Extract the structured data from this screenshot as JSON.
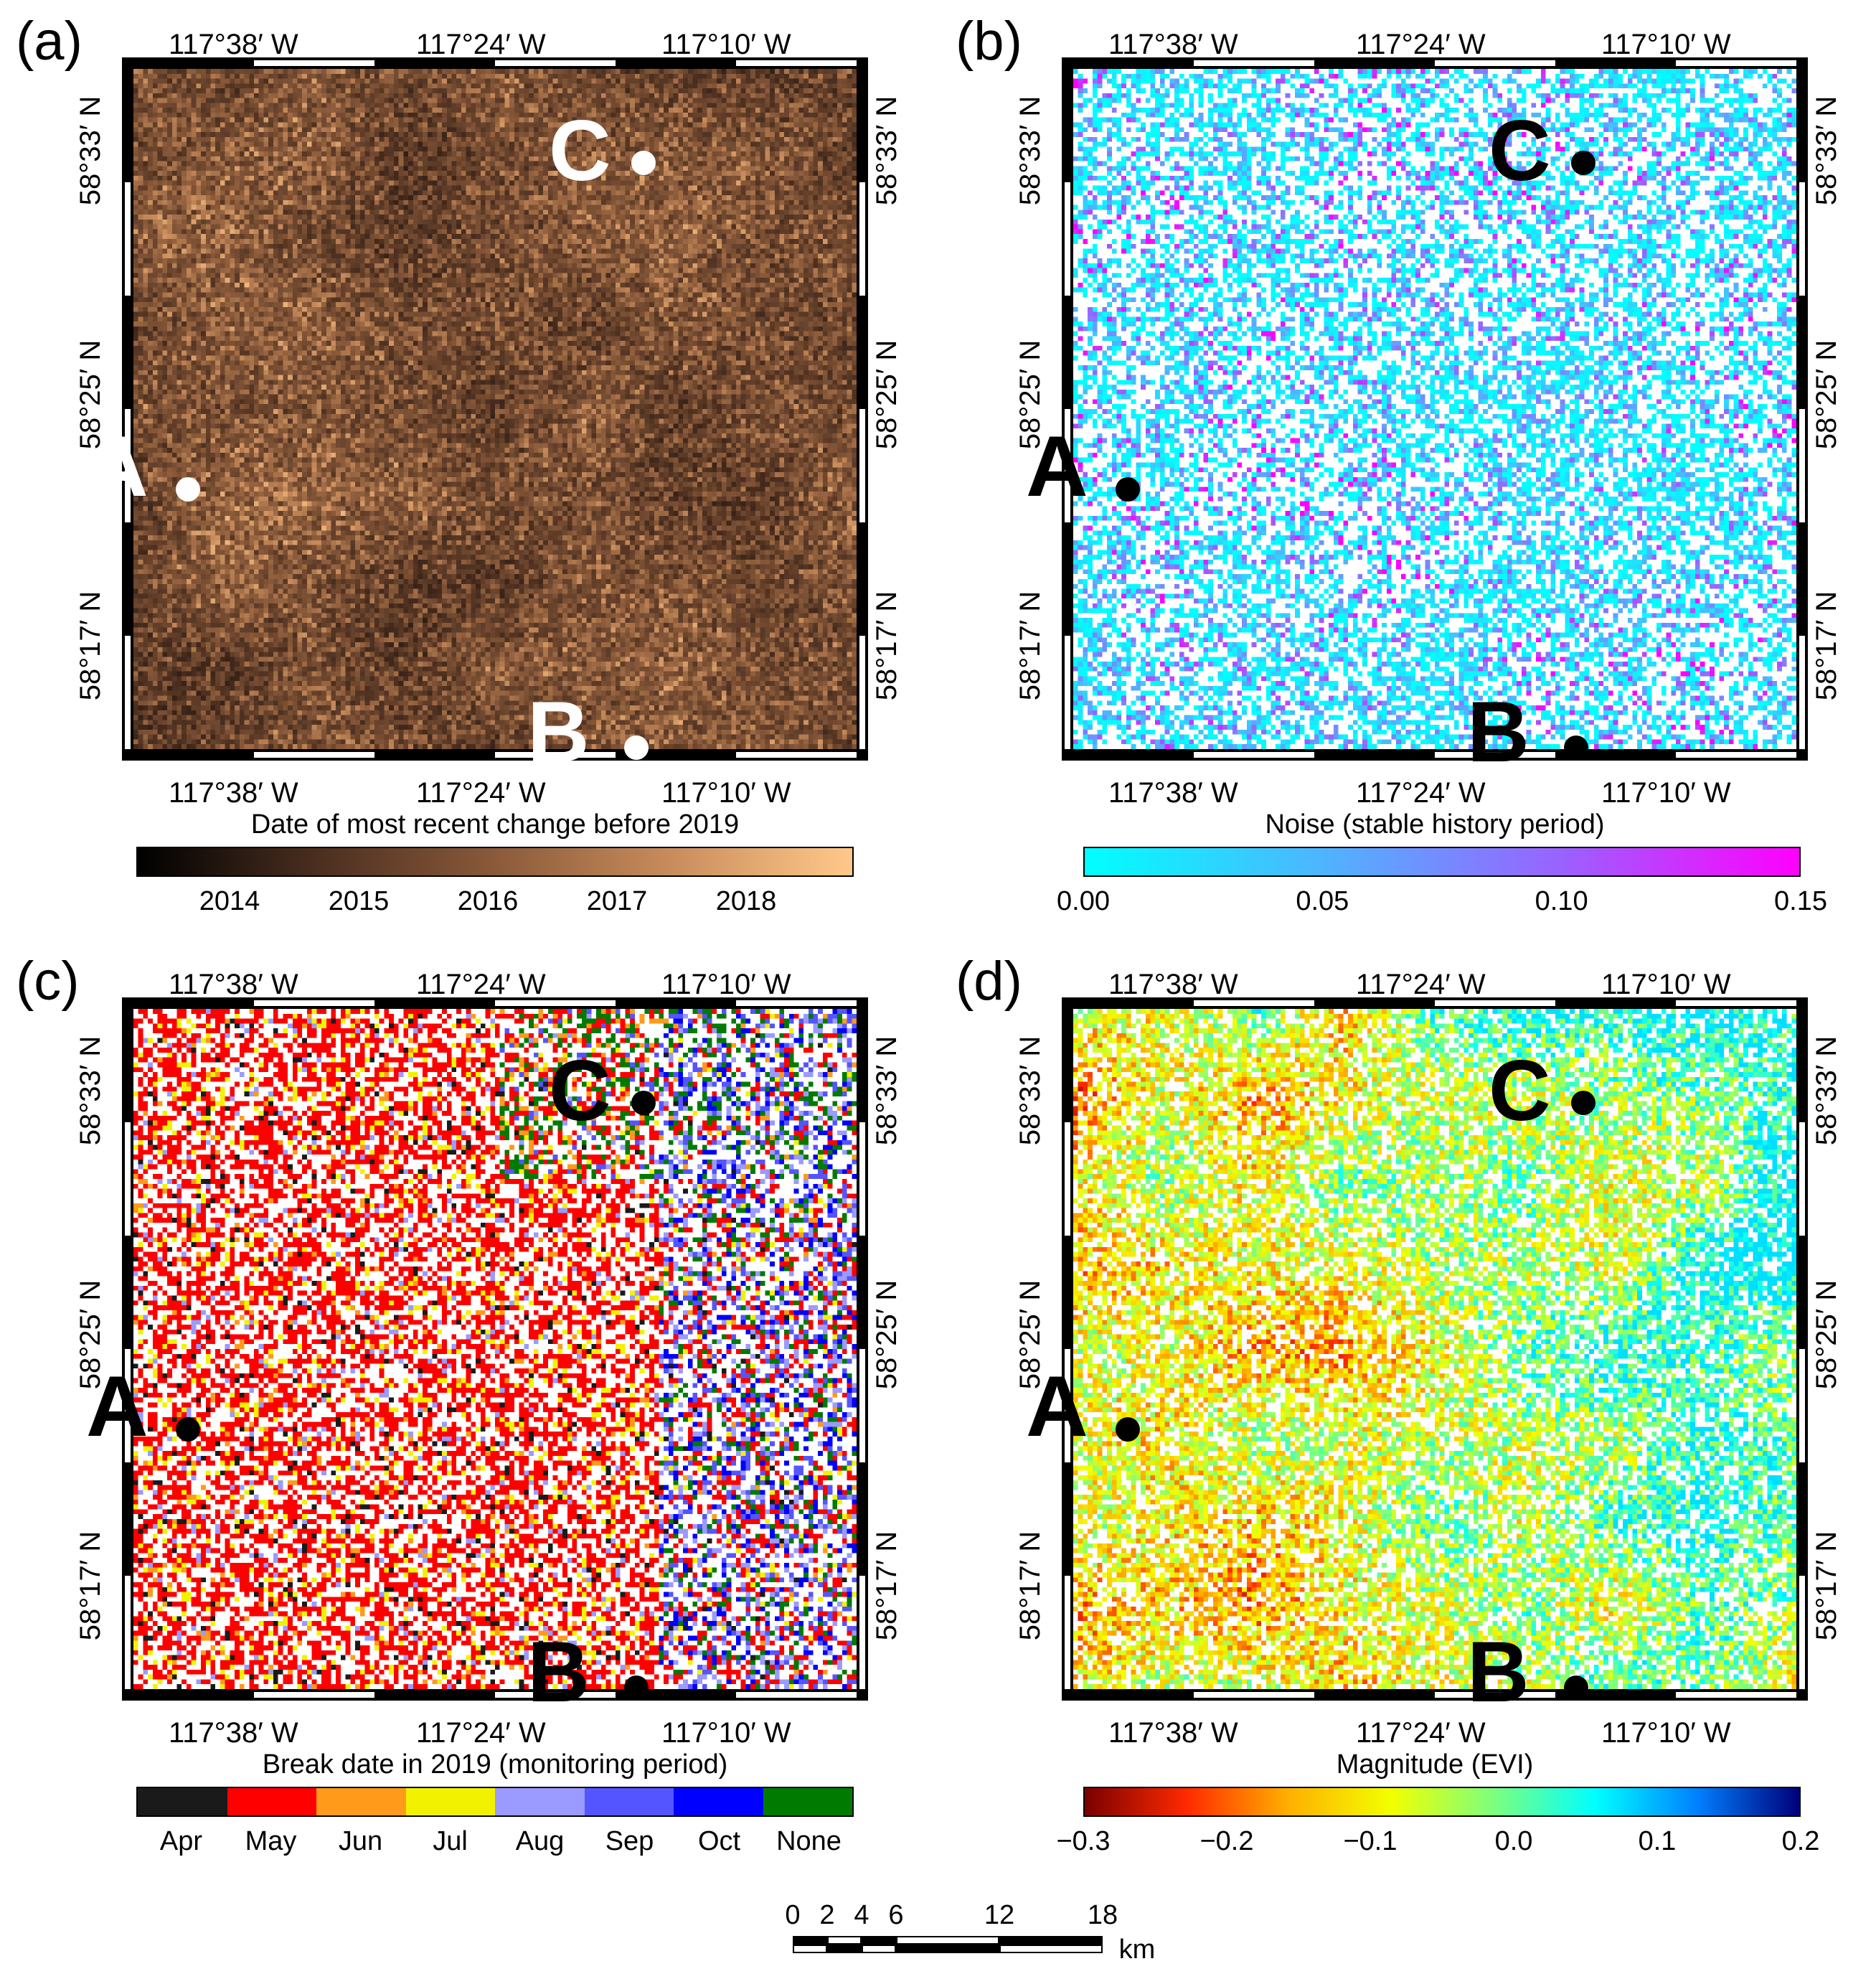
{
  "panels": [
    {
      "id": "a",
      "letter": "(a)",
      "lon_labels": [
        "117°38′ W",
        "117°24′ W",
        "117°10′ W"
      ],
      "lat_labels": [
        "58°33′ N",
        "58°25′ N",
        "58°17′ N"
      ],
      "sites": [
        {
          "name": "A"
        },
        {
          "name": "B"
        },
        {
          "name": "C"
        }
      ],
      "marker_color": "#ffffff",
      "colorbar": {
        "title": "Date of most recent change before 2019",
        "type": "continuous",
        "ticks": [
          "2014",
          "2015",
          "2016",
          "2017",
          "2018"
        ],
        "colors": [
          "#000000",
          "#4a2e1f",
          "#8a5a3a",
          "#c98d5c",
          "#ffc98a"
        ]
      }
    },
    {
      "id": "b",
      "letter": "(b)",
      "lon_labels": [
        "117°38′ W",
        "117°24′ W",
        "117°10′ W"
      ],
      "lat_labels": [
        "58°33′ N",
        "58°25′ N",
        "58°17′ N"
      ],
      "sites": [
        {
          "name": "A"
        },
        {
          "name": "B"
        },
        {
          "name": "C"
        }
      ],
      "marker_color": "#000000",
      "colorbar": {
        "title": "Noise (stable history period)",
        "type": "continuous",
        "ticks": [
          "0.00",
          "0.05",
          "0.10",
          "0.15"
        ],
        "colors": [
          "#00ffff",
          "#4fb4ff",
          "#9a62ff",
          "#ff00ff"
        ]
      }
    },
    {
      "id": "c",
      "letter": "(c)",
      "lon_labels": [
        "117°38′ W",
        "117°24′ W",
        "117°10′ W"
      ],
      "lat_labels": [
        "58°33′ N",
        "58°25′ N",
        "58°17′ N"
      ],
      "sites": [
        {
          "name": "A"
        },
        {
          "name": "B"
        },
        {
          "name": "C"
        }
      ],
      "marker_color": "#000000",
      "colorbar": {
        "title": "Break date in 2019 (monitoring period)",
        "type": "categorical",
        "categories": [
          {
            "label": "Apr",
            "color": "#1a1a1a"
          },
          {
            "label": "May",
            "color": "#ff0000"
          },
          {
            "label": "Jun",
            "color": "#ff9a1a"
          },
          {
            "label": "Jul",
            "color": "#f2f200"
          },
          {
            "label": "Aug",
            "color": "#9a9aff"
          },
          {
            "label": "Sep",
            "color": "#5555ff"
          },
          {
            "label": "Oct",
            "color": "#0000ff"
          },
          {
            "label": "None",
            "color": "#007a00"
          }
        ]
      }
    },
    {
      "id": "d",
      "letter": "(d)",
      "lon_labels": [
        "117°38′ W",
        "117°24′ W",
        "117°10′ W"
      ],
      "lat_labels": [
        "58°33′ N",
        "58°25′ N",
        "58°17′ N"
      ],
      "sites": [
        {
          "name": "A"
        },
        {
          "name": "B"
        },
        {
          "name": "C"
        }
      ],
      "marker_color": "#000000",
      "colorbar": {
        "title": "Magnitude (EVI)",
        "type": "continuous",
        "ticks": [
          "−0.3",
          "−0.2",
          "−0.1",
          "0.0",
          "0.1",
          "0.2"
        ],
        "colors": [
          "#7a0000",
          "#ff2a00",
          "#ffb000",
          "#f2ff00",
          "#7dff7d",
          "#00ffff",
          "#0080ff",
          "#00007a"
        ]
      }
    }
  ],
  "scale_bar": {
    "ticks": [
      "0",
      "2",
      "4",
      "6",
      "12",
      "18"
    ],
    "unit": "km"
  }
}
